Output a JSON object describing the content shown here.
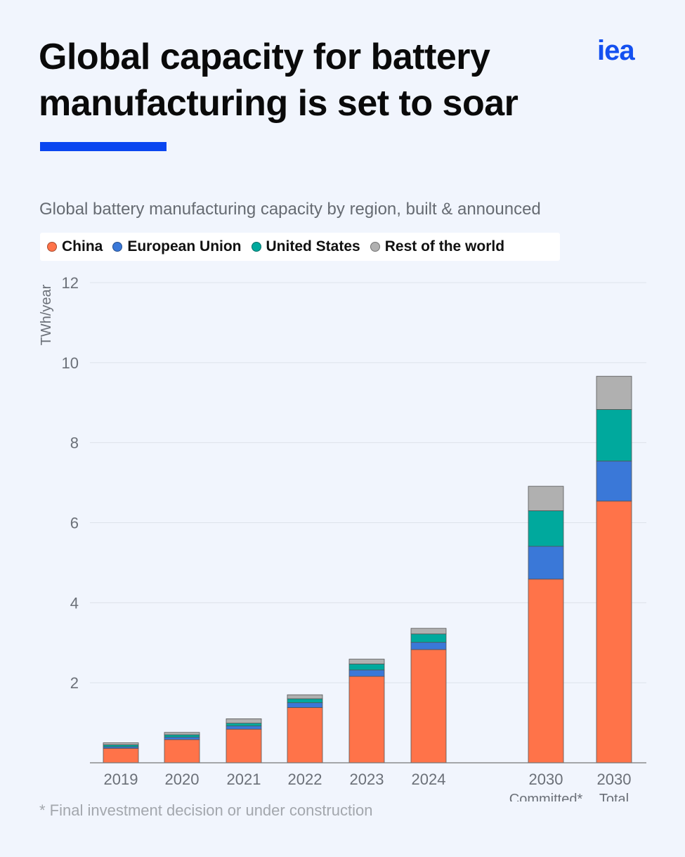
{
  "header": {
    "title_line1": "Global capacity for battery",
    "title_line2": "manufacturing is set to soar",
    "logo_text": "iea"
  },
  "colors": {
    "background": "#f1f5fd",
    "accent": "#0a46f0",
    "China": "#ff7349",
    "European Union": "#3a78d8",
    "United States": "#00a99d",
    "Rest of the world": "#b0b0b0"
  },
  "chart_data": {
    "type": "bar",
    "stacked": true,
    "title": "Global battery manufacturing capacity by region, built & announced",
    "ylabel": "TWh/year",
    "xlabel": "",
    "ylim": [
      0,
      12
    ],
    "yticks": [
      2,
      4,
      6,
      8,
      10,
      12
    ],
    "grid": true,
    "legend_position": "top-left",
    "categories": [
      "2019",
      "2020",
      "2021",
      "2022",
      "2023",
      "2024",
      "2030",
      "2030"
    ],
    "category_sublabels": [
      "",
      "",
      "",
      "",
      "",
      "",
      "Committed*",
      "Total"
    ],
    "series": [
      {
        "name": "China",
        "values": [
          0.36,
          0.58,
          0.84,
          1.38,
          2.16,
          2.83,
          4.59,
          6.54
        ]
      },
      {
        "name": "European Union",
        "values": [
          0.04,
          0.06,
          0.08,
          0.12,
          0.16,
          0.18,
          0.82,
          1.0
        ]
      },
      {
        "name": "United States",
        "values": [
          0.05,
          0.06,
          0.07,
          0.1,
          0.15,
          0.21,
          0.89,
          1.29
        ]
      },
      {
        "name": "Rest of the world",
        "values": [
          0.05,
          0.06,
          0.11,
          0.1,
          0.12,
          0.14,
          0.61,
          0.83
        ]
      }
    ],
    "footnote": "* Final investment decision or under construction"
  }
}
